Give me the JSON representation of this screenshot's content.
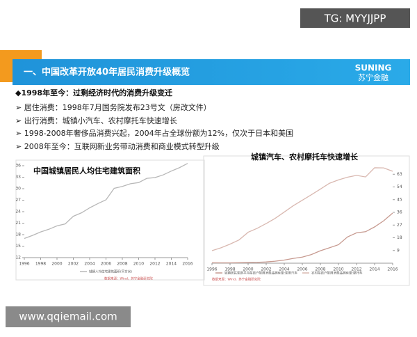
{
  "watermark_top": "TG: MYYJJPP",
  "watermark_bottom": "www.qqiemail.com",
  "header": {
    "title": "一、中国改革开放40年居民消费升级概览",
    "logo_en": "SUNING",
    "logo_cn": "苏宁金融"
  },
  "bullets": [
    "◆1998年至今：过剩经济时代的消费升级变迁",
    "➢ 居住消费：1998年7月国务院发布23号文（房改文件）",
    "➢ 出行消费：城镇小汽车、农村摩托车快速增长",
    "➢ 1998-2008年奢侈品消费兴起，2004年占全球份额为12%，仅次于日本和美国",
    "➢ 2008年至今：互联网新业务带动消费和商业模式转型升级"
  ],
  "chart_data": [
    {
      "type": "line",
      "title": "中国城镇居民人均住宅建筑面积",
      "source": "数据来源：Wind，苏宁金融研究院",
      "x": [
        1996,
        1997,
        1998,
        1999,
        2000,
        2001,
        2002,
        2003,
        2004,
        2005,
        2006,
        2007,
        2008,
        2009,
        2010,
        2011,
        2012,
        2013,
        2014,
        2015,
        2016
      ],
      "series": [
        {
          "name": "城镇人均住宅建筑面积(平方米)",
          "color": "#b8b8b8",
          "values": [
            17.0,
            17.8,
            18.7,
            19.4,
            20.3,
            20.8,
            22.8,
            23.7,
            25.0,
            26.1,
            27.1,
            30.1,
            30.6,
            31.3,
            31.6,
            32.7,
            32.9,
            33.6,
            34.6,
            35.5,
            36.6
          ]
        }
      ],
      "xlim": [
        1996,
        2016
      ],
      "xticks": [
        1996,
        1998,
        2000,
        2002,
        2004,
        2006,
        2008,
        2010,
        2012,
        2014,
        2016
      ],
      "ylim": [
        12,
        36
      ],
      "yticks": [
        12,
        15,
        18,
        21,
        24,
        27,
        30,
        33,
        36
      ]
    },
    {
      "type": "line",
      "title": "城镇汽车、农村摩托车快速增长",
      "source": "数据来源：Wind，苏宁金融研究院",
      "x": [
        1996,
        1997,
        1998,
        1999,
        2000,
        2001,
        2002,
        2003,
        2004,
        2005,
        2006,
        2007,
        2008,
        2009,
        2010,
        2011,
        2012,
        2013,
        2014,
        2015,
        2016
      ],
      "series": [
        {
          "name": "城镇居民家庭平均每百户耐用消费品拥有量:家用汽车",
          "color": "#c79a90",
          "values": [
            0.3,
            0.25,
            0.25,
            0.34,
            0.5,
            0.6,
            0.9,
            1.4,
            2.2,
            3.4,
            4.3,
            6.1,
            8.8,
            10.9,
            13.1,
            18.6,
            21.5,
            22.3,
            25.7,
            30.0,
            35.5
          ]
        },
        {
          "name": "农村每百户耐用消费品拥有量:摩托车",
          "color": "#d9b8b0",
          "values": [
            8.9,
            10.9,
            13.5,
            16.5,
            21.9,
            24.7,
            28.1,
            31.8,
            36.2,
            40.7,
            44.6,
            48.5,
            52.5,
            56.6,
            59.0,
            60.9,
            62.2,
            61.1,
            67.6,
            67.5,
            65.1
          ]
        }
      ],
      "xlim": [
        1996,
        2016
      ],
      "xticks": [
        1996,
        1998,
        2000,
        2002,
        2004,
        2006,
        2008,
        2010,
        2012,
        2014,
        2016
      ],
      "ylim": [
        0,
        72
      ],
      "yticks": [
        9,
        18,
        27,
        36,
        45,
        54,
        63
      ]
    }
  ]
}
